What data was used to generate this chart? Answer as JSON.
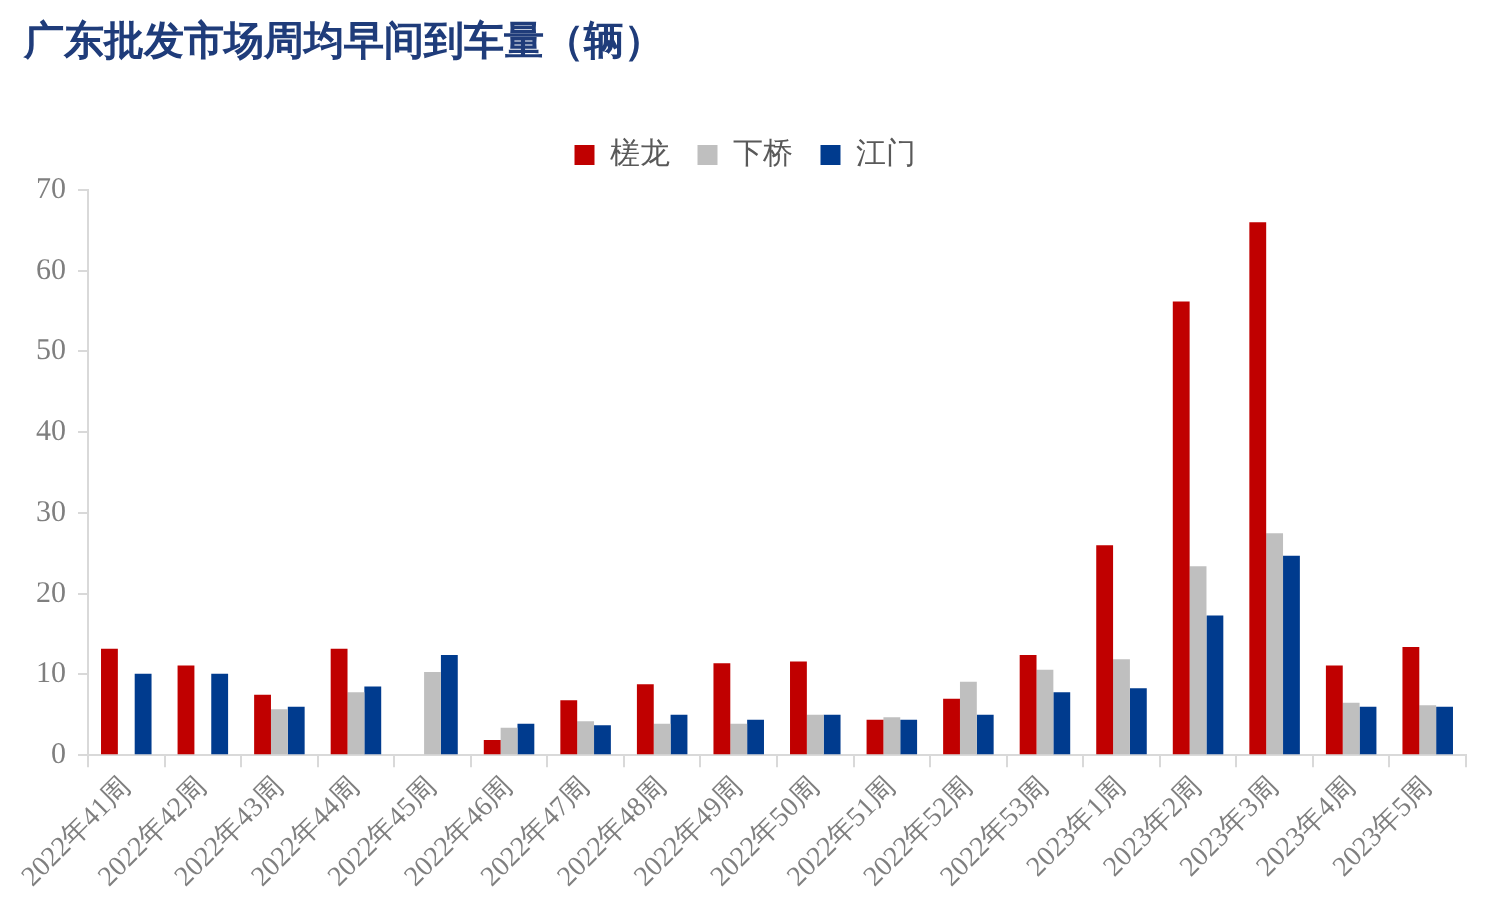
{
  "chart_data": {
    "type": "bar",
    "title": "广东批发市场周均早间到车量（辆）",
    "categories": [
      "2022年41周",
      "2022年42周",
      "2022年43周",
      "2022年44周",
      "2022年45周",
      "2022年46周",
      "2022年47周",
      "2022年48周",
      "2022年49周",
      "2022年50周",
      "2022年51周",
      "2022年52周",
      "2022年53周",
      "2023年1周",
      "2023年2周",
      "2023年3周",
      "2023年4周",
      "2023年5周"
    ],
    "series": [
      {
        "name": "槎龙",
        "color": "#c00000",
        "values": [
          13.2,
          11.1,
          7.5,
          13.2,
          null,
          1.9,
          6.8,
          8.8,
          11.4,
          11.6,
          4.4,
          7.0,
          12.4,
          26.0,
          56.2,
          66.0,
          11.1,
          13.4
        ]
      },
      {
        "name": "下桥",
        "color": "#bfbfbf",
        "values": [
          null,
          null,
          5.7,
          7.8,
          10.3,
          3.4,
          4.2,
          3.9,
          3.9,
          5.0,
          4.7,
          9.1,
          10.6,
          11.9,
          23.4,
          27.5,
          6.5,
          6.2
        ]
      },
      {
        "name": "江门",
        "color": "#003b8e",
        "values": [
          10.1,
          10.1,
          6.0,
          8.5,
          12.4,
          3.9,
          3.7,
          5.0,
          4.4,
          5.0,
          4.4,
          5.0,
          7.8,
          8.3,
          17.3,
          24.7,
          6.0,
          6.0
        ]
      }
    ],
    "ylim": [
      0,
      70
    ],
    "yticks": [
      0,
      10,
      20,
      30,
      40,
      50,
      60,
      70
    ],
    "legend": "top",
    "grid": false
  }
}
